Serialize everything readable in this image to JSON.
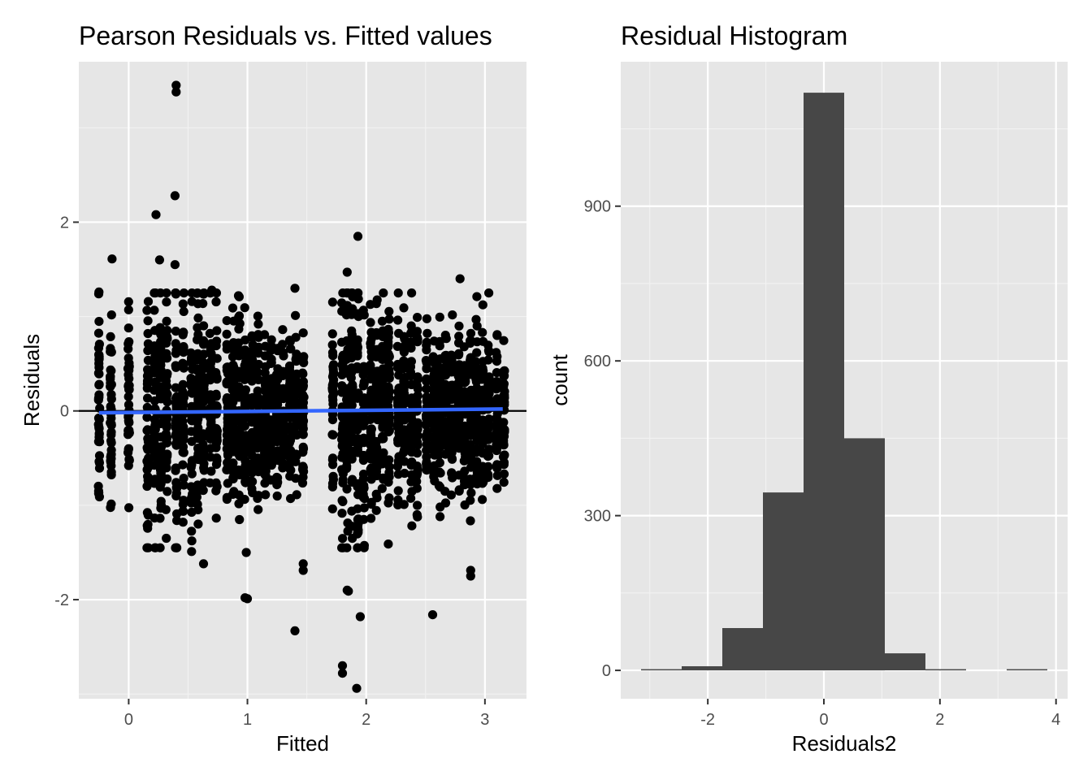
{
  "chart_data": [
    {
      "type": "scatter",
      "title": "Pearson Residuals vs. Fitted values",
      "xlabel": "Fitted",
      "ylabel": "Residuals",
      "xlim": [
        -0.42,
        3.35
      ],
      "ylim": [
        -3.05,
        3.7
      ],
      "x_ticks": [
        0,
        1,
        2,
        3
      ],
      "x_tick_labels": [
        "0",
        "1",
        "2",
        "3"
      ],
      "y_ticks": [
        -2,
        0,
        2
      ],
      "y_tick_labels": [
        "-2",
        "0",
        "2"
      ],
      "grid": true,
      "hline": {
        "y": 0,
        "color": "#000000"
      },
      "smooth": {
        "x": [
          -0.25,
          3.15
        ],
        "y": [
          -0.02,
          0.02
        ],
        "color": "#3366ff"
      },
      "point_color": "#000000",
      "fitted_columns": [
        -0.25,
        -0.15,
        0.0,
        0.16,
        0.22,
        0.27,
        0.32,
        0.4,
        0.46,
        0.53,
        0.58,
        0.63,
        0.69,
        0.74,
        0.83,
        0.88,
        0.93,
        0.98,
        1.04,
        1.09,
        1.15,
        1.2,
        1.25,
        1.3,
        1.36,
        1.41,
        1.47,
        1.72,
        1.8,
        1.84,
        1.88,
        1.93,
        1.98,
        2.04,
        2.09,
        2.14,
        2.19,
        2.27,
        2.32,
        2.38,
        2.43,
        2.51,
        2.57,
        2.62,
        2.67,
        2.72,
        2.78,
        2.83,
        2.88,
        2.93,
        2.98,
        3.03,
        3.1,
        3.16
      ],
      "column_spread": [
        0.55,
        0.45,
        0.5,
        0.7,
        0.75,
        0.7,
        0.7,
        0.75,
        0.7,
        0.65,
        0.6,
        0.6,
        0.55,
        0.55,
        0.5,
        0.5,
        0.5,
        0.5,
        0.45,
        0.45,
        0.45,
        0.45,
        0.45,
        0.45,
        0.45,
        0.45,
        0.4,
        0.4,
        0.7,
        0.75,
        0.75,
        0.7,
        0.65,
        0.6,
        0.6,
        0.55,
        0.55,
        0.5,
        0.5,
        0.5,
        0.5,
        0.5,
        0.45,
        0.45,
        0.45,
        0.45,
        0.45,
        0.45,
        0.45,
        0.45,
        0.45,
        0.45,
        0.4,
        0.35
      ],
      "outliers": [
        {
          "x": 0.4,
          "y": 3.45
        },
        {
          "x": 0.4,
          "y": 3.38
        },
        {
          "x": 0.39,
          "y": 2.28
        },
        {
          "x": 0.23,
          "y": 2.08
        },
        {
          "x": -0.14,
          "y": 1.61
        },
        {
          "x": 0.26,
          "y": 1.6
        },
        {
          "x": 0.39,
          "y": 1.55
        },
        {
          "x": 0.7,
          "y": 1.28
        },
        {
          "x": 1.4,
          "y": 1.3
        },
        {
          "x": 1.93,
          "y": 1.85
        },
        {
          "x": 1.84,
          "y": 1.47
        },
        {
          "x": 2.79,
          "y": 1.4
        },
        {
          "x": -0.25,
          "y": 1.26
        },
        {
          "x": 0.53,
          "y": -1.49
        },
        {
          "x": 0.63,
          "y": -1.62
        },
        {
          "x": 0.98,
          "y": -1.98
        },
        {
          "x": 1.0,
          "y": -1.99
        },
        {
          "x": 1.4,
          "y": -2.33
        },
        {
          "x": 1.47,
          "y": -1.62
        },
        {
          "x": 1.47,
          "y": -1.69
        },
        {
          "x": 1.84,
          "y": -1.9
        },
        {
          "x": 1.85,
          "y": -1.91
        },
        {
          "x": 1.95,
          "y": -2.18
        },
        {
          "x": 2.56,
          "y": -2.16
        },
        {
          "x": 1.8,
          "y": -2.7
        },
        {
          "x": 1.8,
          "y": -2.78
        },
        {
          "x": 1.92,
          "y": -2.94
        },
        {
          "x": 2.88,
          "y": -1.69
        },
        {
          "x": 2.88,
          "y": -1.75
        },
        {
          "x": 0.99,
          "y": -1.5
        }
      ]
    },
    {
      "type": "histogram",
      "title": "Residual Histogram",
      "xlabel": "Residuals2",
      "ylabel": "count",
      "xlim": [
        -3.5,
        4.2
      ],
      "ylim": [
        -55,
        1180
      ],
      "x_ticks": [
        -2,
        0,
        2,
        4
      ],
      "x_tick_labels": [
        "-2",
        "0",
        "2",
        "4"
      ],
      "y_ticks": [
        0,
        300,
        600,
        900
      ],
      "y_tick_labels": [
        "0",
        "300",
        "600",
        "900"
      ],
      "grid": true,
      "bar_color": "#474747",
      "bin_edges": [
        -3.15,
        -2.45,
        -1.75,
        -1.05,
        -0.35,
        0.35,
        1.05,
        1.75,
        2.45,
        3.15,
        3.85
      ],
      "counts": [
        2,
        8,
        82,
        345,
        1120,
        450,
        33,
        2,
        0,
        2
      ]
    }
  ]
}
